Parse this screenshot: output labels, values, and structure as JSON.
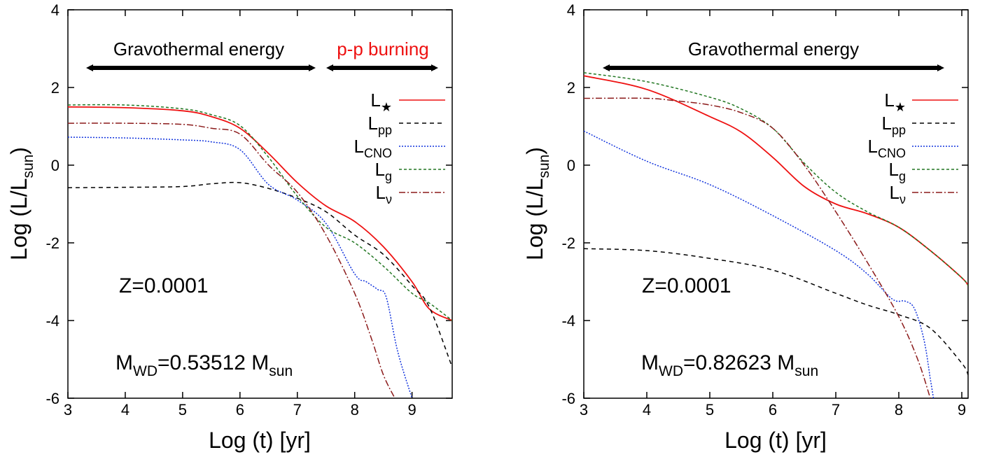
{
  "colors": {
    "L_star": "#ee1111",
    "L_pp": "#000000",
    "L_CNO": "#1133dd",
    "L_g": "#227722",
    "L_nu": "#8b1a1a",
    "pp_burning_text": "#ee1111"
  },
  "chart_data": [
    {
      "type": "line",
      "xlabel": "Log (t) [yr]",
      "ylabel": "Log (L/L",
      "ylabel_sub": "sun",
      "ylabel_close": ")",
      "xlim": [
        3,
        9.7
      ],
      "ylim": [
        -6,
        4
      ],
      "xticks": [
        "3",
        "4",
        "5",
        "6",
        "7",
        "8",
        "9"
      ],
      "yticks": [
        "-6",
        "-4",
        "-2",
        "0",
        "2",
        "4"
      ],
      "grid": false,
      "legend_position": "top-right",
      "annotations": {
        "z": "Z=0.0001",
        "mass_main": "M",
        "mass_sub1": "WD",
        "mass_val": "=0.53512 M",
        "mass_sub2": "sun",
        "band1": "Gravothermal energy",
        "band2": "p-p burning"
      },
      "series": [
        {
          "name": "L★",
          "key": "L_star",
          "x": [
            3,
            4,
            5,
            5.5,
            6,
            6.5,
            7,
            7.5,
            8,
            8.5,
            9,
            9.3,
            9.7
          ],
          "y": [
            1.5,
            1.48,
            1.4,
            1.25,
            0.95,
            0.3,
            -0.45,
            -1.05,
            -1.45,
            -2.1,
            -3.0,
            -3.7,
            -4.0
          ]
        },
        {
          "name": "Lpp",
          "key": "L_pp",
          "x": [
            3,
            4,
            5,
            5.5,
            6,
            6.5,
            7,
            7.5,
            8,
            8.5,
            9,
            9.3,
            9.7
          ],
          "y": [
            -0.58,
            -0.57,
            -0.55,
            -0.48,
            -0.45,
            -0.6,
            -0.85,
            -1.2,
            -1.8,
            -2.3,
            -3.1,
            -3.65,
            -5.2
          ]
        },
        {
          "name": "LCNO",
          "key": "L_CNO",
          "x": [
            3,
            4,
            5,
            5.5,
            6,
            6.5,
            7,
            7.5,
            8,
            8.2,
            8.4,
            8.55,
            8.75,
            9.0
          ],
          "y": [
            0.72,
            0.7,
            0.65,
            0.6,
            0.4,
            -0.5,
            -0.9,
            -1.5,
            -2.8,
            -3.0,
            -3.2,
            -3.4,
            -4.8,
            -6.0
          ]
        },
        {
          "name": "Lg",
          "key": "L_g",
          "x": [
            3,
            4,
            5,
            5.5,
            6,
            6.5,
            7,
            7.5,
            8,
            8.5,
            9,
            9.3,
            9.7
          ],
          "y": [
            1.55,
            1.55,
            1.45,
            1.3,
            1.02,
            0.2,
            -0.8,
            -1.6,
            -2.0,
            -2.6,
            -3.3,
            -3.55,
            -4.0
          ]
        },
        {
          "name": "Lν",
          "key": "L_nu",
          "x": [
            3,
            4,
            5,
            5.5,
            6,
            6.5,
            7,
            7.5,
            8,
            8.3,
            8.5,
            8.7
          ],
          "y": [
            1.08,
            1.08,
            1.05,
            0.95,
            0.8,
            0.0,
            -0.7,
            -1.8,
            -3.3,
            -4.5,
            -5.4,
            -6.0
          ]
        }
      ]
    },
    {
      "type": "line",
      "xlabel": "Log (t) [yr]",
      "ylabel": "Log (L/L",
      "ylabel_sub": "sun",
      "ylabel_close": ")",
      "xlim": [
        3,
        9.1
      ],
      "ylim": [
        -6,
        4
      ],
      "xticks": [
        "3",
        "4",
        "5",
        "6",
        "7",
        "8",
        "9"
      ],
      "yticks": [
        "-6",
        "-4",
        "-2",
        "0",
        "2",
        "4"
      ],
      "grid": false,
      "legend_position": "top-right",
      "annotations": {
        "z": "Z=0.0001",
        "mass_main": "M",
        "mass_sub1": "WD",
        "mass_val": "=0.82623 M",
        "mass_sub2": "sun",
        "band1": "Gravothermal energy",
        "band2": ""
      },
      "series": [
        {
          "name": "L★",
          "key": "L_star",
          "x": [
            3,
            4,
            5,
            5.5,
            6,
            6.5,
            7,
            7.5,
            8,
            8.5,
            9,
            9.1
          ],
          "y": [
            2.3,
            1.95,
            1.25,
            0.85,
            0.2,
            -0.55,
            -1.0,
            -1.25,
            -1.6,
            -2.2,
            -2.9,
            -3.1
          ]
        },
        {
          "name": "Lpp",
          "key": "L_pp",
          "x": [
            3,
            4,
            5,
            6,
            7,
            7.5,
            8,
            8.5,
            9,
            9.1
          ],
          "y": [
            -2.15,
            -2.2,
            -2.4,
            -2.7,
            -3.3,
            -3.6,
            -3.85,
            -4.2,
            -5.1,
            -5.4
          ]
        },
        {
          "name": "LCNO",
          "key": "L_CNO",
          "x": [
            3,
            4,
            5,
            6,
            7,
            7.5,
            7.9,
            8.1,
            8.25,
            8.4,
            8.5,
            8.55
          ],
          "y": [
            0.88,
            0.1,
            -0.5,
            -1.3,
            -2.2,
            -2.8,
            -3.45,
            -3.5,
            -3.7,
            -4.5,
            -5.5,
            -6.0
          ]
        },
        {
          "name": "Lg",
          "key": "L_g",
          "x": [
            3,
            4,
            5,
            5.5,
            6,
            6.5,
            7,
            7.5,
            8,
            8.5,
            9,
            9.1
          ],
          "y": [
            2.38,
            2.15,
            1.75,
            1.45,
            0.95,
            0.05,
            -0.7,
            -1.2,
            -1.6,
            -2.2,
            -2.9,
            -3.1
          ]
        },
        {
          "name": "Lν",
          "key": "L_nu",
          "x": [
            3,
            4,
            4.5,
            5,
            5.5,
            6,
            6.5,
            7,
            7.5,
            8,
            8.3,
            8.5
          ],
          "y": [
            1.72,
            1.72,
            1.65,
            1.55,
            1.35,
            0.95,
            0.0,
            -1.2,
            -2.5,
            -3.9,
            -5.0,
            -6.0
          ]
        }
      ]
    }
  ]
}
